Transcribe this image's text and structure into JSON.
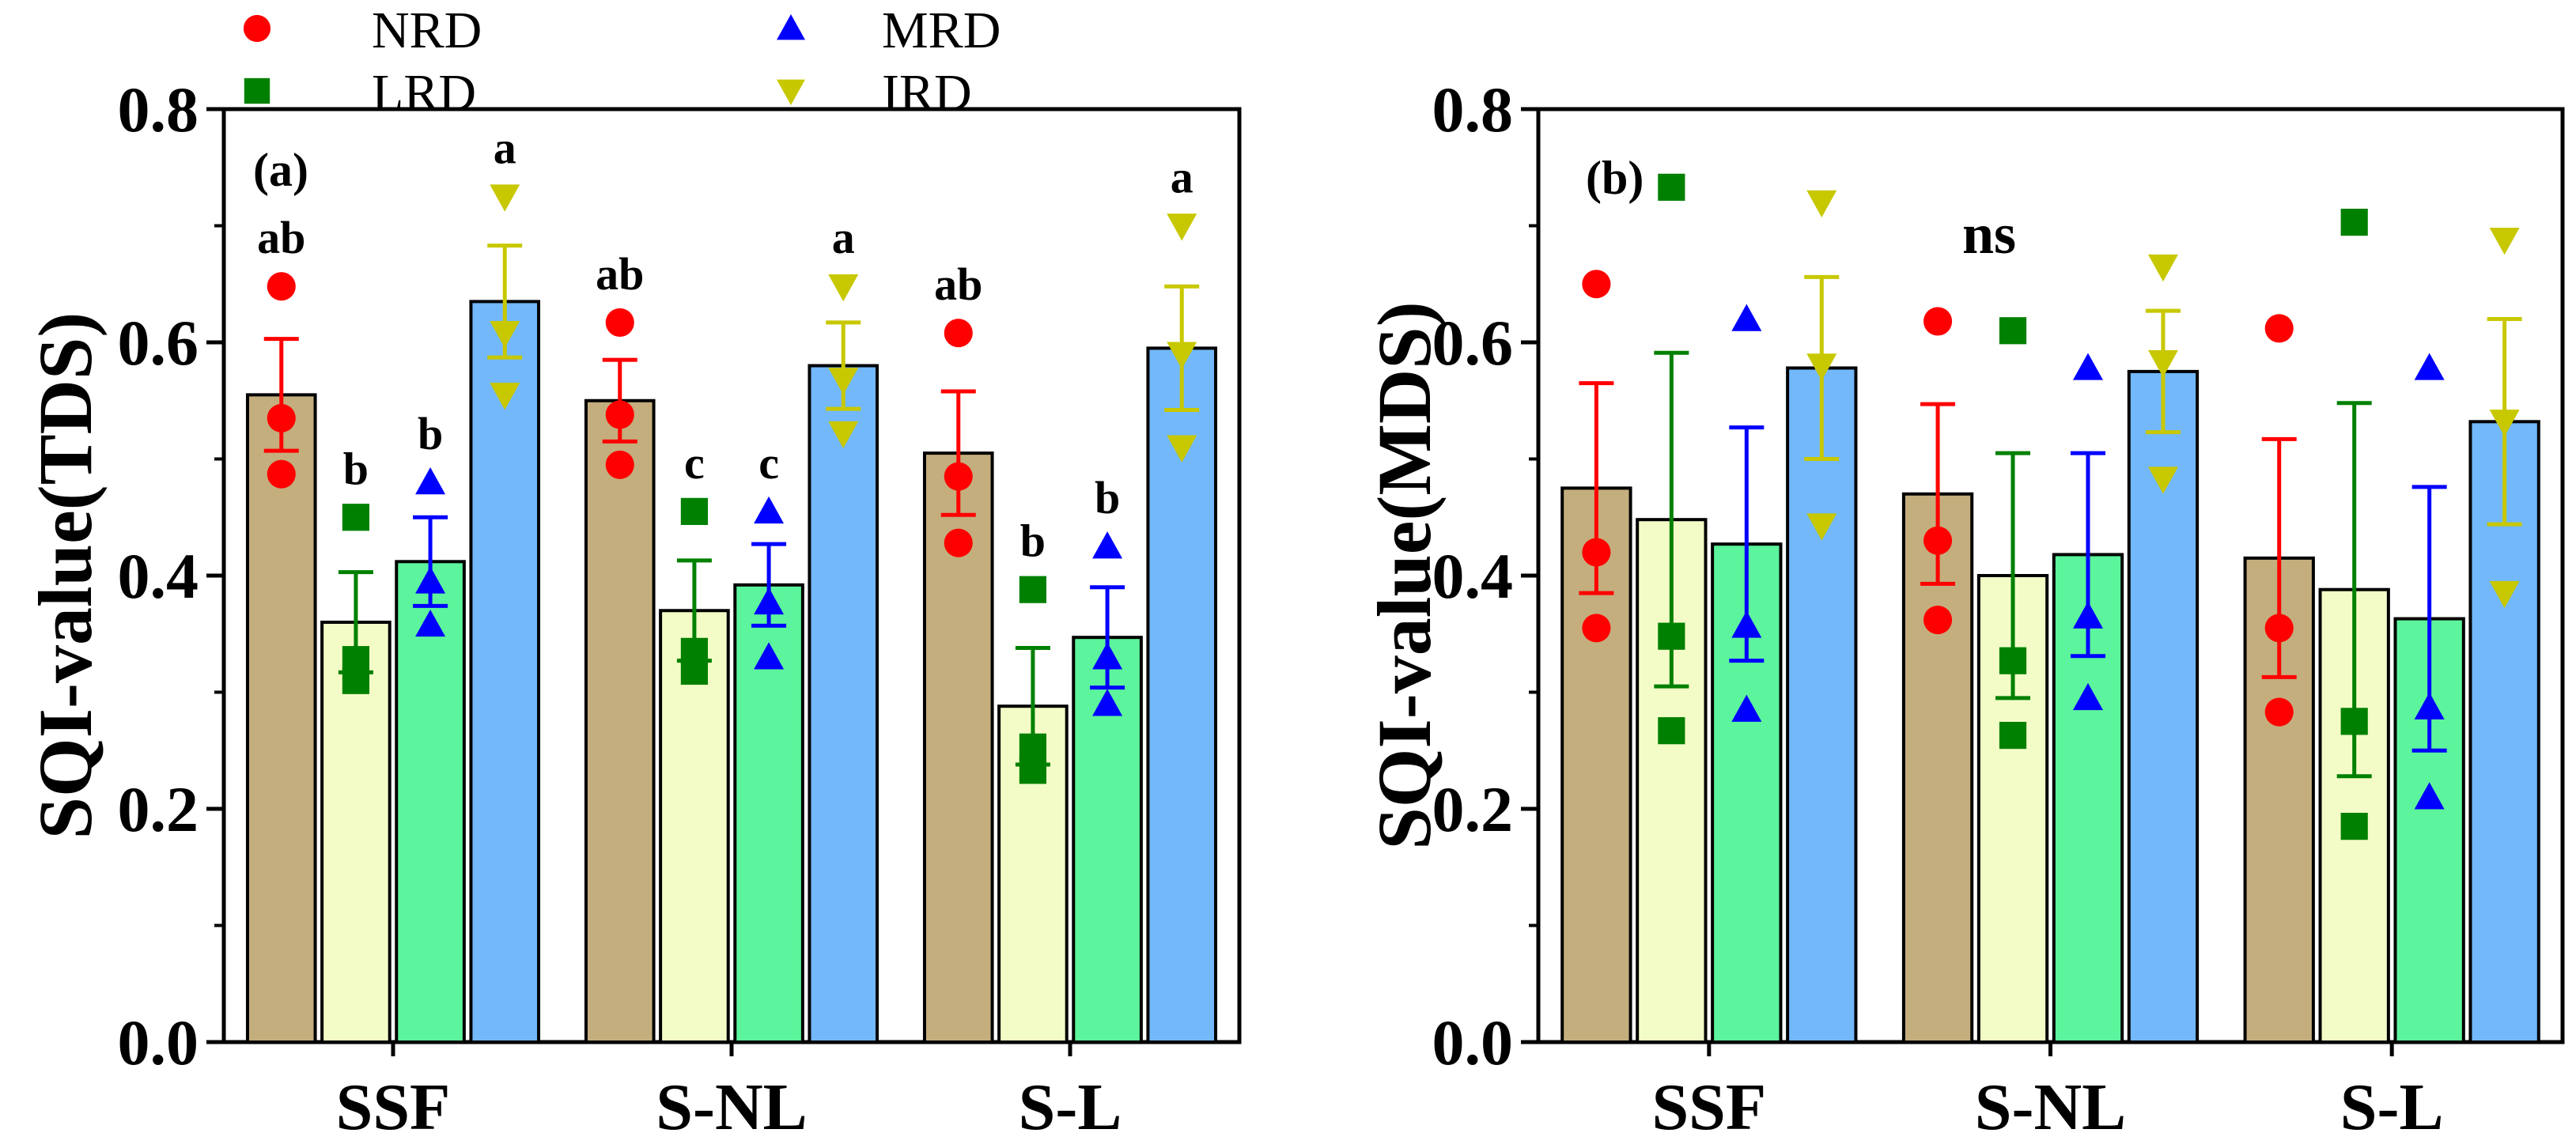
{
  "legend": [
    {
      "label": "NRD",
      "marker": "circle",
      "color": "#ff0000"
    },
    {
      "label": "LRD",
      "marker": "square",
      "color": "#008000"
    },
    {
      "label": "MRD",
      "marker": "triangle-up",
      "color": "#0000ff"
    },
    {
      "label": "IRD",
      "marker": "triangle-down",
      "color": "#c8c800"
    }
  ],
  "bar_colors": [
    "#c4ae7d",
    "#f3fcc6",
    "#5cf49c",
    "#72b8fa"
  ],
  "chart_data": [
    {
      "type": "bar",
      "panel": "(a)",
      "ylabel": "SQI-value(TDS)",
      "xlabel": "",
      "ylim": [
        0,
        0.8
      ],
      "yticks": [
        "0.0",
        "0.2",
        "0.4",
        "0.6",
        "0.8"
      ],
      "categories": [
        "SSF",
        "S-NL",
        "S-L"
      ],
      "annotation": "",
      "series": [
        {
          "name": "NRD",
          "values": [
            0.555,
            0.55,
            0.505
          ],
          "errors": [
            0.048,
            0.035,
            0.053
          ],
          "points": [
            [
              0.648,
              0.535,
              0.487
            ],
            [
              0.617,
              0.538,
              0.495
            ],
            [
              0.608,
              0.485,
              0.428
            ]
          ],
          "sig": [
            "ab",
            "ab",
            "ab"
          ]
        },
        {
          "name": "LRD",
          "values": [
            0.36,
            0.37,
            0.288
          ],
          "errors": [
            0.043,
            0.043,
            0.05
          ],
          "points": [
            [
              0.45,
              0.328,
              0.31
            ],
            [
              0.455,
              0.335,
              0.318
            ],
            [
              0.388,
              0.253,
              0.233
            ]
          ],
          "sig": [
            "b",
            "c",
            "b"
          ]
        },
        {
          "name": "MRD",
          "values": [
            0.412,
            0.392,
            0.347
          ],
          "errors": [
            0.038,
            0.035,
            0.043
          ],
          "points": [
            [
              0.48,
              0.395,
              0.358
            ],
            [
              0.455,
              0.377,
              0.33
            ],
            [
              0.425,
              0.33,
              0.29
            ]
          ],
          "sig": [
            "b",
            "c",
            "b"
          ]
        },
        {
          "name": "IRD",
          "values": [
            0.635,
            0.58,
            0.595
          ],
          "errors": [
            0.048,
            0.037,
            0.053
          ],
          "points": [
            [
              0.725,
              0.608,
              0.555
            ],
            [
              0.648,
              0.568,
              0.522
            ],
            [
              0.7,
              0.59,
              0.51
            ]
          ],
          "sig": [
            "a",
            "a",
            "a"
          ]
        }
      ]
    },
    {
      "type": "bar",
      "panel": "(b)",
      "ylabel": "SQI-value(MDS)",
      "xlabel": "",
      "ylim": [
        0,
        0.8
      ],
      "yticks": [
        "0.0",
        "0.2",
        "0.4",
        "0.6",
        "0.8"
      ],
      "categories": [
        "SSF",
        "S-NL",
        "S-L"
      ],
      "annotation": "ns",
      "series": [
        {
          "name": "NRD",
          "values": [
            0.475,
            0.47,
            0.415
          ],
          "errors": [
            0.09,
            0.077,
            0.102
          ],
          "points": [
            [
              0.65,
              0.42,
              0.355
            ],
            [
              0.618,
              0.43,
              0.362
            ],
            [
              0.612,
              0.355,
              0.283
            ]
          ],
          "sig": [
            "",
            "",
            ""
          ]
        },
        {
          "name": "LRD",
          "values": [
            0.448,
            0.4,
            0.388
          ],
          "errors": [
            0.143,
            0.105,
            0.16
          ],
          "points": [
            [
              0.733,
              0.348,
              0.267
            ],
            [
              0.61,
              0.327,
              0.263
            ],
            [
              0.703,
              0.275,
              0.185
            ]
          ],
          "sig": [
            "",
            "",
            ""
          ]
        },
        {
          "name": "MRD",
          "values": [
            0.427,
            0.418,
            0.363
          ],
          "errors": [
            0.1,
            0.087,
            0.113
          ],
          "points": [
            [
              0.62,
              0.357,
              0.285
            ],
            [
              0.578,
              0.365,
              0.295
            ],
            [
              0.578,
              0.287,
              0.21
            ]
          ],
          "sig": [
            "",
            "",
            ""
          ]
        },
        {
          "name": "IRD",
          "values": [
            0.578,
            0.575,
            0.532
          ],
          "errors": [
            0.078,
            0.052,
            0.088
          ],
          "points": [
            [
              0.72,
              0.58,
              0.443
            ],
            [
              0.665,
              0.583,
              0.483
            ],
            [
              0.688,
              0.532,
              0.385
            ]
          ],
          "sig": [
            "",
            "",
            ""
          ]
        }
      ]
    }
  ]
}
